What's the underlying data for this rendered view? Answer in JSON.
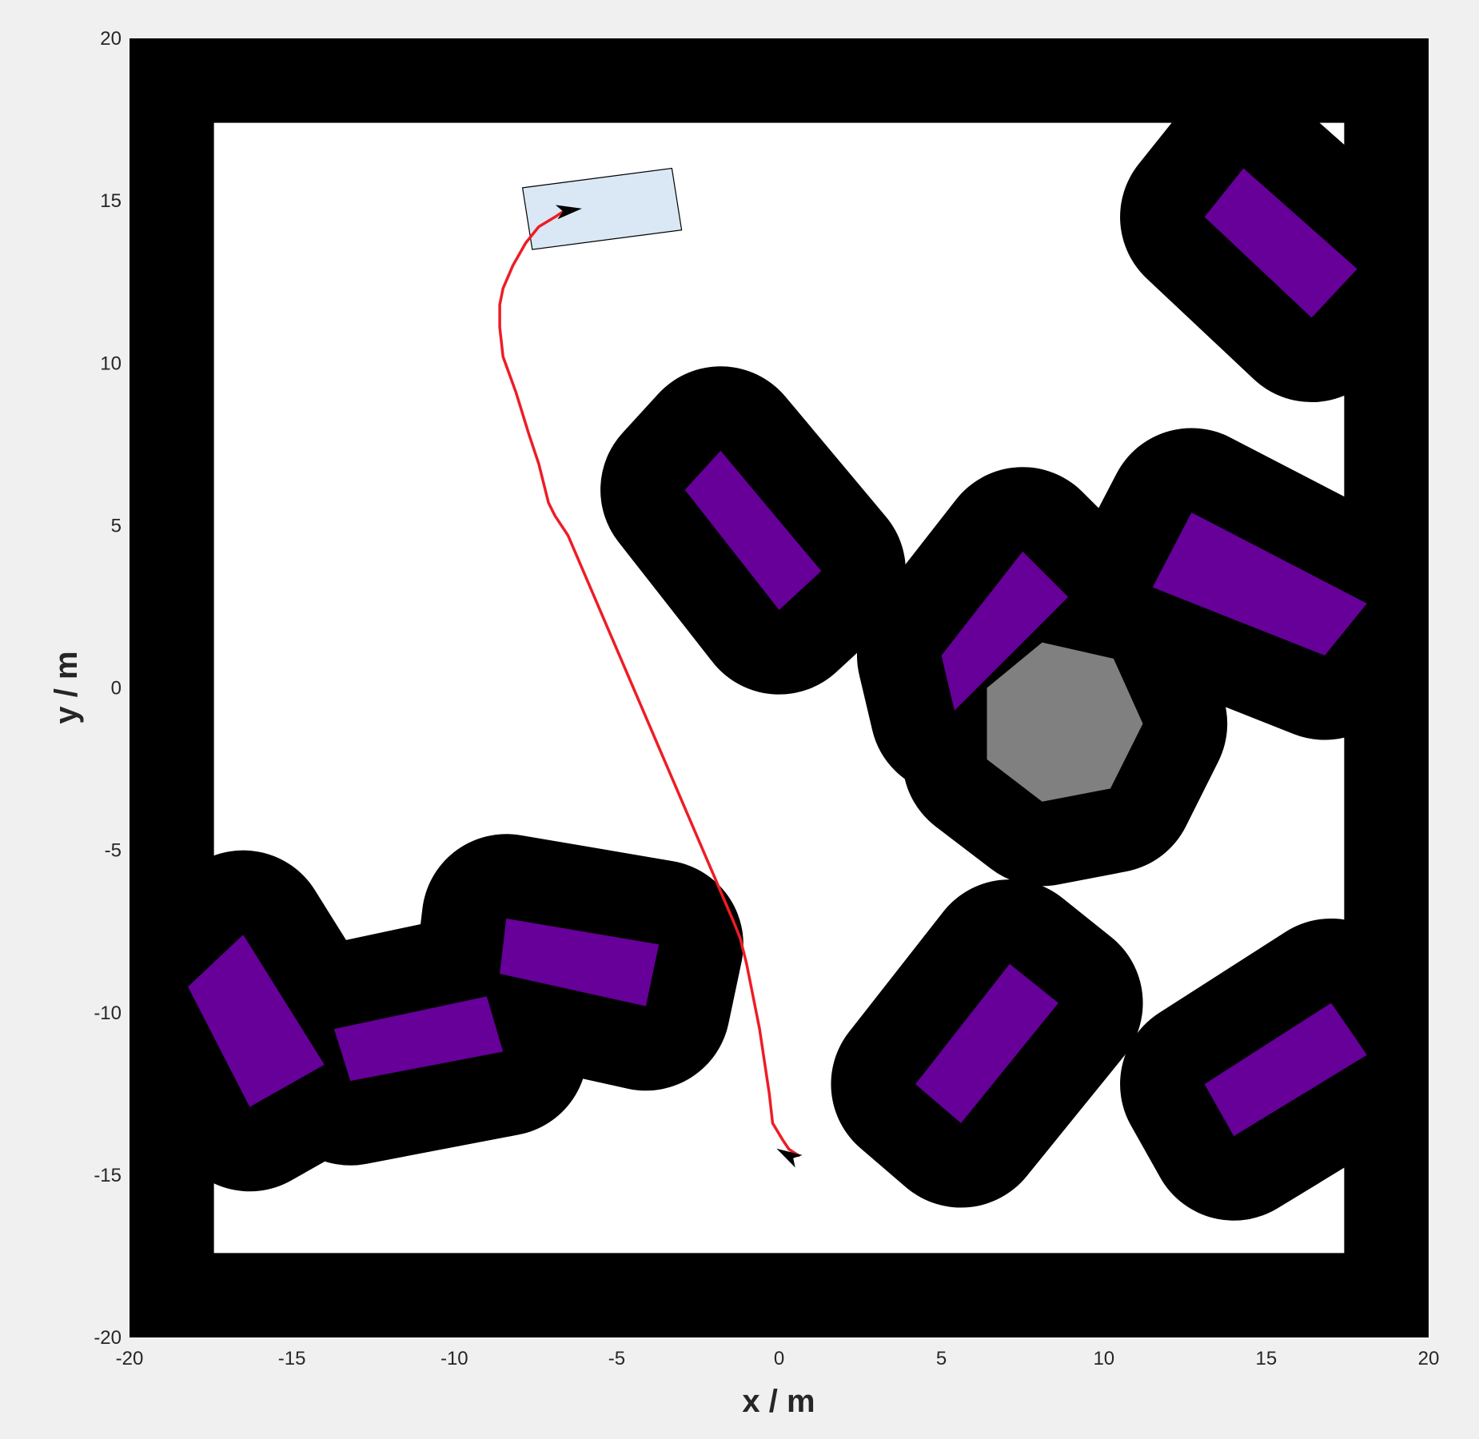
{
  "chart_data": {
    "type": "scatter",
    "title": "",
    "xlabel": "x / m",
    "ylabel": "y / m",
    "xlim": [
      -20,
      20
    ],
    "ylim": [
      -20,
      20
    ],
    "xticks": [
      -20,
      -15,
      -10,
      -5,
      0,
      5,
      10,
      15,
      20
    ],
    "yticks": [
      -20,
      -15,
      -10,
      -5,
      0,
      5,
      10,
      15,
      20
    ],
    "grid": false,
    "colors": {
      "background": "#f0f0f0",
      "axes_background": "#ffffff",
      "inflation": "#000000",
      "obstacle": "#660099",
      "hexagon_obstacle": "#808080",
      "goal_region_fill": "#d9e8f4",
      "goal_region_edge": "#000000",
      "path": "#ee1c25",
      "pose_arrow": "#000000"
    },
    "boundary": {
      "outer": [
        -20,
        20,
        -20,
        20
      ],
      "inner_free": [
        -17.4,
        17.4,
        -17.4,
        17.4
      ]
    },
    "inflation_radius": 2.6,
    "rect_obstacles": [
      {
        "corners": [
          [
            13.1,
            14.5
          ],
          [
            14.3,
            16.0
          ],
          [
            17.8,
            12.9
          ],
          [
            16.4,
            11.4
          ]
        ]
      },
      {
        "corners": [
          [
            -2.9,
            6.1
          ],
          [
            -1.8,
            7.3
          ],
          [
            1.3,
            3.6
          ],
          [
            0.0,
            2.4
          ]
        ]
      },
      {
        "corners": [
          [
            5.0,
            1.0
          ],
          [
            7.5,
            4.2
          ],
          [
            8.9,
            2.8
          ],
          [
            5.4,
            -0.7
          ]
        ]
      },
      {
        "corners": [
          [
            11.5,
            3.1
          ],
          [
            12.7,
            5.4
          ],
          [
            18.1,
            2.6
          ],
          [
            16.8,
            1.0
          ]
        ]
      },
      {
        "corners": [
          [
            -18.2,
            -9.2
          ],
          [
            -16.5,
            -7.6
          ],
          [
            -14.0,
            -11.6
          ],
          [
            -16.3,
            -12.9
          ]
        ]
      },
      {
        "corners": [
          [
            -13.7,
            -10.5
          ],
          [
            -9.0,
            -9.5
          ],
          [
            -8.5,
            -11.2
          ],
          [
            -13.2,
            -12.1
          ]
        ]
      },
      {
        "corners": [
          [
            -8.4,
            -7.1
          ],
          [
            -3.7,
            -7.9
          ],
          [
            -4.1,
            -9.8
          ],
          [
            -8.6,
            -8.8
          ]
        ]
      },
      {
        "corners": [
          [
            4.2,
            -12.2
          ],
          [
            7.1,
            -8.5
          ],
          [
            8.6,
            -9.7
          ],
          [
            5.6,
            -13.4
          ]
        ]
      },
      {
        "corners": [
          [
            13.1,
            -12.2
          ],
          [
            17.0,
            -9.7
          ],
          [
            18.1,
            -11.3
          ],
          [
            14.0,
            -13.8
          ]
        ]
      }
    ],
    "hexagon_obstacle": {
      "vertices": [
        [
          6.4,
          0.0
        ],
        [
          8.1,
          1.4
        ],
        [
          10.3,
          0.9
        ],
        [
          11.2,
          -1.1
        ],
        [
          10.2,
          -3.1
        ],
        [
          8.1,
          -3.5
        ],
        [
          6.4,
          -2.2
        ]
      ]
    },
    "inflated_shapes": [
      {
        "kind": "stadium",
        "from": [
          13.1,
          14.5
        ],
        "to": [
          17.8,
          12.9
        ]
      },
      {
        "kind": "stadium",
        "from": [
          -2.9,
          6.1
        ],
        "to": [
          1.3,
          3.6
        ]
      },
      {
        "kind": "stadium",
        "from": [
          5.0,
          1.0
        ],
        "to": [
          8.9,
          2.8
        ]
      },
      {
        "kind": "stadium",
        "from": [
          11.5,
          3.1
        ],
        "to": [
          18.1,
          2.6
        ]
      },
      {
        "kind": "stadium",
        "from": [
          -18.2,
          -9.2
        ],
        "to": [
          -14.0,
          -11.6
        ]
      },
      {
        "kind": "stadium",
        "from": [
          -13.7,
          -10.5
        ],
        "to": [
          -8.5,
          -11.2
        ]
      },
      {
        "kind": "stadium",
        "from": [
          -8.4,
          -7.1
        ],
        "to": [
          -4.1,
          -9.8
        ]
      },
      {
        "kind": "stadium",
        "from": [
          4.2,
          -12.2
        ],
        "to": [
          8.6,
          -9.7
        ]
      },
      {
        "kind": "stadium",
        "from": [
          13.1,
          -12.2
        ],
        "to": [
          18.1,
          -11.3
        ]
      }
    ],
    "goal_region": {
      "corners": [
        [
          -7.9,
          15.4
        ],
        [
          -3.3,
          16.0
        ],
        [
          -3.0,
          14.1
        ],
        [
          -7.6,
          13.5
        ]
      ]
    },
    "path": {
      "x": [
        0.6,
        0.3,
        0.1,
        -0.2,
        -0.3,
        -0.6,
        -1.0,
        -1.2,
        -1.4,
        -1.7,
        -2.0,
        -6.5,
        -6.9,
        -7.1,
        -7.4,
        -7.7,
        -8.1,
        -8.5,
        -8.6,
        -8.6,
        -8.5,
        -8.2,
        -7.8,
        -7.4,
        -6.9,
        -6.6
      ],
      "y": [
        -14.4,
        -14.2,
        -13.9,
        -13.4,
        -12.5,
        -10.5,
        -8.5,
        -7.7,
        -7.2,
        -6.5,
        -5.8,
        4.7,
        5.3,
        5.7,
        6.9,
        7.8,
        9.1,
        10.2,
        11.1,
        11.8,
        12.3,
        13.0,
        13.7,
        14.2,
        14.5,
        14.7
      ]
    },
    "start_pose": {
      "x": 0.3,
      "y": -14.4,
      "theta_deg": 150
    },
    "goal_pose": {
      "x": -6.5,
      "y": 14.7,
      "theta_deg": 8
    }
  }
}
